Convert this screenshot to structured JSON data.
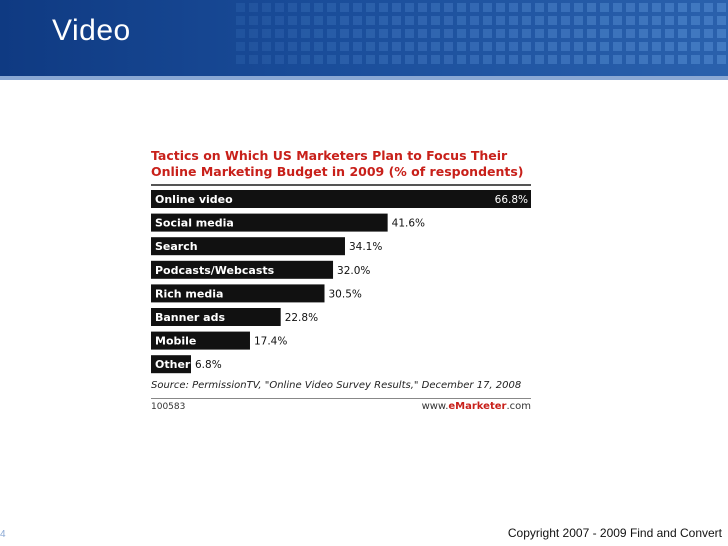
{
  "slide": {
    "title": "Video",
    "copyright": "Copyright 2007 - 2009 Find and Convert",
    "page_number": "4"
  },
  "colors": {
    "header_blue": "#1a4d9a",
    "title_red": "#c8201a",
    "bar_black": "#111111"
  },
  "chart_data": {
    "type": "bar",
    "orientation": "horizontal",
    "title": "Tactics on Which US Marketers Plan to Focus Their Online Marketing Budget in 2009 (% of respondents)",
    "categories": [
      "Online video",
      "Social media",
      "Search",
      "Podcasts/Webcasts",
      "Rich media",
      "Banner ads",
      "Mobile",
      "Other"
    ],
    "values": [
      66.8,
      41.6,
      34.1,
      32.0,
      30.5,
      22.8,
      17.4,
      6.8
    ],
    "value_labels": [
      "66.8%",
      "41.6%",
      "34.1%",
      "32.0%",
      "30.5%",
      "22.8%",
      "17.4%",
      "6.8%"
    ],
    "xlim": [
      0,
      66.8
    ],
    "grid": false,
    "source": "Source: PermissionTV, \"Online Video Survey Results,\" December 17, 2008",
    "chart_id": "100583",
    "brand_prefix": "www.",
    "brand_name": "eMarketer",
    "brand_suffix": ".com"
  }
}
